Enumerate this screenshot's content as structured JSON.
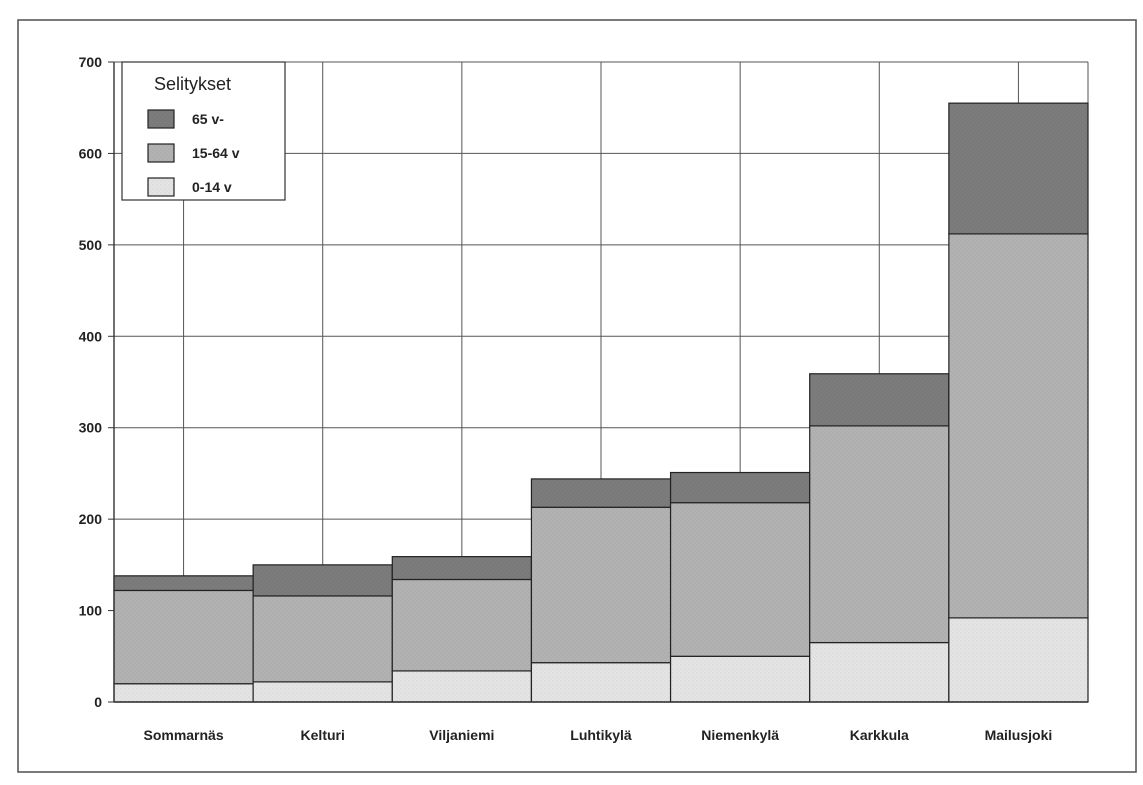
{
  "chart_data": {
    "type": "bar",
    "stacked": true,
    "categories": [
      "Sommarnäs",
      "Kelturi",
      "Viljaniemi",
      "Luhtikylä",
      "Niemenkylä",
      "Karkkula",
      "Mailusjoki"
    ],
    "series": [
      {
        "name": "0-14 v",
        "color": "#e4e4e4",
        "values": [
          20,
          22,
          34,
          43,
          50,
          65,
          92
        ]
      },
      {
        "name": "15-64 v",
        "color": "#b2b2b2",
        "values": [
          102,
          94,
          100,
          170,
          168,
          237,
          420
        ]
      },
      {
        "name": "65 v-",
        "color": "#7c7c7c",
        "values": [
          16,
          34,
          25,
          31,
          33,
          57,
          143
        ]
      }
    ],
    "ylim": [
      0,
      700
    ],
    "yticks": [
      0,
      100,
      200,
      300,
      400,
      500,
      600,
      700
    ],
    "grid": true,
    "legend": {
      "title": "Selitykset",
      "position": "top-left",
      "order": [
        "65 v-",
        "15-64 v",
        "0-14 v"
      ]
    }
  }
}
